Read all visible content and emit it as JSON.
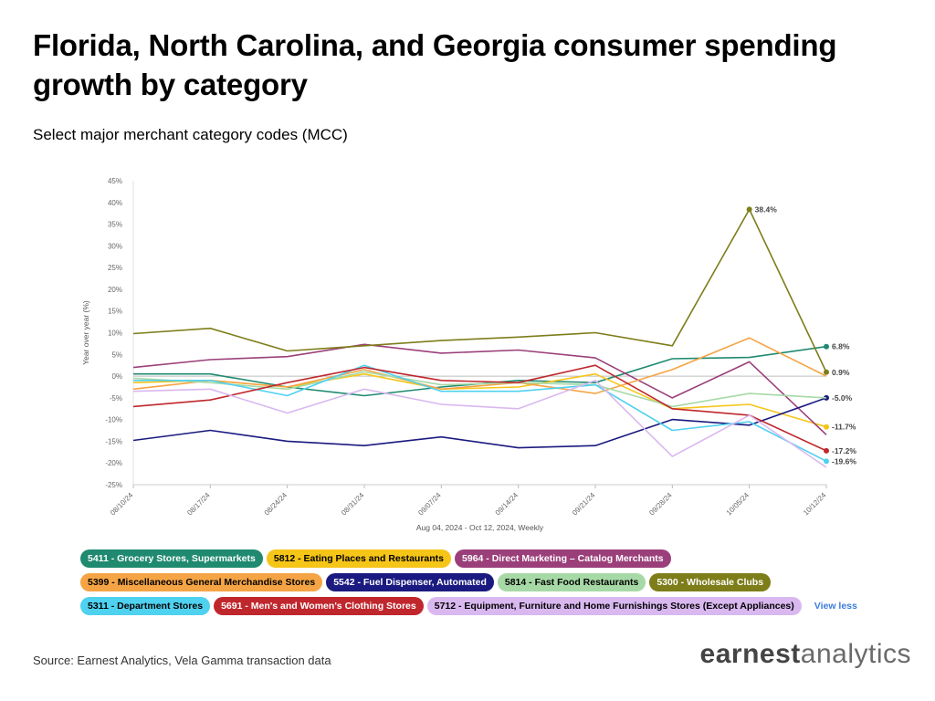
{
  "title": "Florida, North Carolina, and Georgia consumer spending growth by category",
  "subtitle": "Select major merchant category codes (MCC)",
  "source": "Source: Earnest Analytics, Vela Gamma transaction data",
  "logo": {
    "part1": "earnest",
    "part2": "analytics"
  },
  "view_less": "View less",
  "chart_data": {
    "type": "line",
    "x": [
      "08/10/24",
      "08/17/24",
      "08/24/24",
      "08/31/24",
      "09/07/24",
      "09/14/24",
      "09/21/24",
      "09/28/24",
      "10/05/24",
      "10/12/24"
    ],
    "xlabel": "Aug 04, 2024 - Oct 12, 2024, Weekly",
    "ylabel": "Year over year (%)",
    "ylim": [
      -25,
      45
    ],
    "yticks": [
      "-25%",
      "-20%",
      "-15%",
      "-10%",
      "-5%",
      "0%",
      "5%",
      "10%",
      "15%",
      "20%",
      "25%",
      "30%",
      "35%",
      "40%",
      "45%"
    ],
    "grid": false,
    "series": [
      {
        "name": "5411 - Grocery Stores, Supermarkets",
        "color": "#1f8a70",
        "text_color": "#ffffff",
        "values": [
          0.5,
          0.5,
          -2.5,
          -4.5,
          -2.5,
          -1.0,
          -1.5,
          4.0,
          4.3,
          6.8
        ],
        "end_label": "6.8%"
      },
      {
        "name": "5812 - Eating Places and Restaurants",
        "color": "#f5c518",
        "text_color": "#000000",
        "values": [
          -1.5,
          -1.0,
          -2.5,
          0.5,
          -3.0,
          -2.5,
          0.5,
          -7.5,
          -6.5,
          -11.7
        ],
        "end_label": "-11.7%"
      },
      {
        "name": "5964 - Direct Marketing – Catalog Merchants",
        "color": "#9b3f7a",
        "text_color": "#ffffff",
        "values": [
          2.0,
          3.8,
          4.5,
          7.3,
          5.3,
          6.0,
          4.2,
          -5.0,
          3.3,
          -13.5
        ],
        "end_label": ""
      },
      {
        "name": "5399 - Miscellaneous General Merchandise Stores",
        "color": "#f5a445",
        "text_color": "#000000",
        "values": [
          -3.0,
          -1.0,
          -2.5,
          1.5,
          -3.0,
          -1.5,
          -4.0,
          1.5,
          8.8,
          0.0
        ],
        "end_label": ""
      },
      {
        "name": "5542 - Fuel Dispenser, Automated",
        "color": "#1a1a80",
        "text_color": "#ffffff",
        "values": [
          -14.8,
          -12.5,
          -15.0,
          -16.0,
          -14.0,
          -16.5,
          -16.0,
          -10.0,
          -11.3,
          -5.0
        ],
        "end_label": "-5.0%"
      },
      {
        "name": "5814 - Fast Food Restaurants",
        "color": "#a6d9a6",
        "text_color": "#000000",
        "values": [
          -0.5,
          -1.5,
          -3.0,
          1.0,
          -2.0,
          -1.5,
          -2.0,
          -7.0,
          -4.0,
          -5.0
        ],
        "end_label": ""
      },
      {
        "name": "5300 - Wholesale Clubs",
        "color": "#7d7d1a",
        "text_color": "#ffffff",
        "values": [
          9.8,
          11.0,
          5.8,
          7.0,
          8.2,
          9.0,
          10.0,
          7.0,
          38.4,
          0.9
        ],
        "end_label": "0.9%",
        "peak_label": "38.4%"
      },
      {
        "name": "5311 - Department Stores",
        "color": "#4fd1f0",
        "text_color": "#000000",
        "values": [
          -1.0,
          -1.0,
          -4.5,
          2.5,
          -3.5,
          -3.5,
          -2.0,
          -12.5,
          -10.5,
          -19.6
        ],
        "end_label": "-19.6%"
      },
      {
        "name": "5691 - Men's and Women's Clothing Stores",
        "color": "#c0272d",
        "text_color": "#ffffff",
        "values": [
          -7.0,
          -5.5,
          -1.5,
          2.0,
          -1.0,
          -1.5,
          2.5,
          -7.5,
          -9.0,
          -17.2
        ],
        "end_label": "-17.2%"
      },
      {
        "name": "5712 - Equipment, Furniture and Home Furnishings Stores (Except Appliances)",
        "color": "#d9b8f0",
        "text_color": "#000000",
        "values": [
          -3.5,
          -3.0,
          -8.5,
          -3.0,
          -6.5,
          -7.5,
          -1.0,
          -18.5,
          -9.0,
          -21.0
        ],
        "end_label": ""
      }
    ]
  }
}
